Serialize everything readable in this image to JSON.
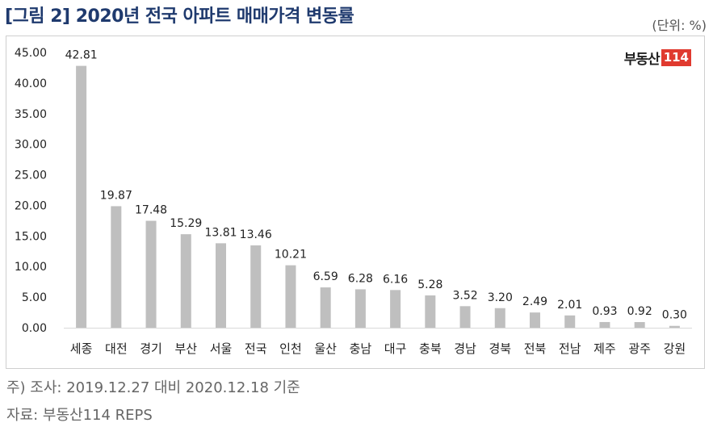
{
  "title": "[그림 2] 2020년 전국 아파트 매매가격 변동률",
  "unit": "(단위: %)",
  "logo": {
    "text": "부동산",
    "number": "114",
    "accent_color": "#e03a2f"
  },
  "notes": {
    "survey": "주) 조사: 2019.12.27 대비 2020.12.18 기준",
    "source": "자료: 부동산114 REPS"
  },
  "colors": {
    "bar": "#bfbfbf",
    "title": "#1f3a6e",
    "axis": "#d9d9d9"
  },
  "chart_data": {
    "type": "bar",
    "categories": [
      "세종",
      "대전",
      "경기",
      "부산",
      "서울",
      "전국",
      "인천",
      "울산",
      "충남",
      "대구",
      "충북",
      "경남",
      "경북",
      "전북",
      "전남",
      "제주",
      "광주",
      "강원"
    ],
    "values": [
      42.81,
      19.87,
      17.48,
      15.29,
      13.81,
      13.46,
      10.21,
      6.59,
      6.28,
      6.16,
      5.28,
      3.52,
      3.2,
      2.49,
      2.01,
      0.93,
      0.92,
      0.3
    ],
    "data_labels": [
      "42.81",
      "19.87",
      "17.48",
      "15.29",
      "13.81",
      "13.46",
      "10.21",
      "6.59",
      "6.28",
      "6.16",
      "5.28",
      "3.52",
      "3.20",
      "2.49",
      "2.01",
      "0.93",
      "0.92",
      "0.30"
    ],
    "yticks": [
      "0.00",
      "5.00",
      "10.00",
      "15.00",
      "20.00",
      "25.00",
      "30.00",
      "35.00",
      "40.00",
      "45.00"
    ],
    "ylim": [
      0,
      45
    ],
    "grid": false,
    "legend": "none"
  }
}
